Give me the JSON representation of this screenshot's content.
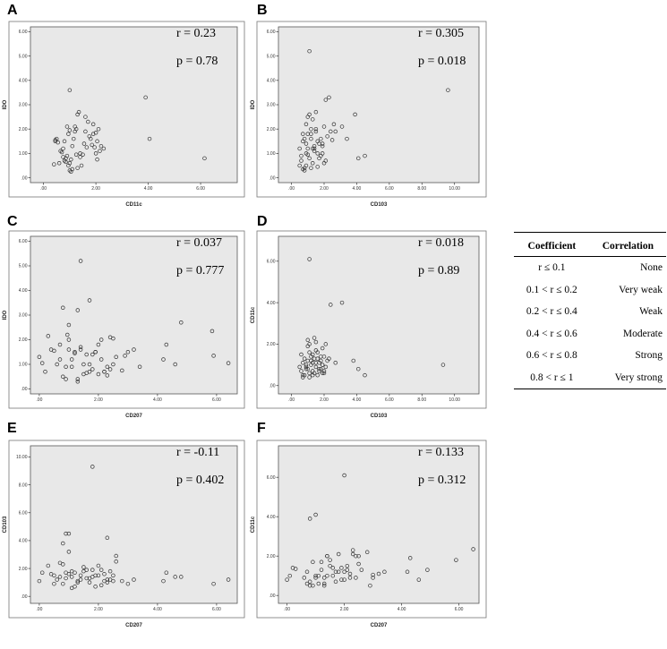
{
  "chart_data": [
    {
      "type": "scatter",
      "panel": "A",
      "xlabel": "CD11c",
      "ylabel": "IDO",
      "r_label": "r = 0.23",
      "p_label": "p = 0.78",
      "xticks": [
        {
          "v": 0,
          "t": ".00"
        },
        {
          "v": 2,
          "t": "2.00"
        },
        {
          "v": 4,
          "t": "4.00"
        },
        {
          "v": 6,
          "t": "6.00"
        }
      ],
      "yticks": [
        {
          "v": 0,
          "t": ".00"
        },
        {
          "v": 1,
          "t": "1.00"
        },
        {
          "v": 2,
          "t": "2.00"
        },
        {
          "v": 3,
          "t": "3.00"
        },
        {
          "v": 4,
          "t": "4.00"
        },
        {
          "v": 5,
          "t": "5.00"
        },
        {
          "v": 6,
          "t": "6.00"
        }
      ],
      "xlim": [
        -0.5,
        7.4
      ],
      "ylim": [
        -0.2,
        6.2
      ],
      "x": [
        0.45,
        0.5,
        0.45,
        0.55,
        0.4,
        0.6,
        0.7,
        0.65,
        0.75,
        0.8,
        0.85,
        0.9,
        0.95,
        1.0,
        1.05,
        1.1,
        1.0,
        0.95,
        1.2,
        1.25,
        1.3,
        1.35,
        1.4,
        1.5,
        1.55,
        1.6,
        1.7,
        1.75,
        1.8,
        1.9,
        2.0,
        2.1,
        2.2,
        1.15,
        1.05,
        0.85,
        0.75,
        1.3,
        1.45,
        1.65,
        1.85,
        2.0,
        2.15,
        2.3,
        1.2,
        1.0,
        0.9,
        0.8,
        1.1,
        1.6,
        1.9,
        2.05,
        2.05,
        1.95,
        3.9,
        4.05,
        6.15,
        1.0,
        1.25,
        1.4
      ],
      "y": [
        1.55,
        1.6,
        1.5,
        1.45,
        0.55,
        0.6,
        1.05,
        1.1,
        1.2,
        0.7,
        0.8,
        0.9,
        0.5,
        0.3,
        0.25,
        0.35,
        0.6,
        1.8,
        1.9,
        2.0,
        2.6,
        2.7,
        1.0,
        0.95,
        1.4,
        2.5,
        2.3,
        1.7,
        1.6,
        1.8,
        1.85,
        2.0,
        1.3,
        1.6,
        0.75,
        0.65,
        0.85,
        0.4,
        0.5,
        1.25,
        1.35,
        1.0,
        1.1,
        1.2,
        2.1,
        1.95,
        2.1,
        1.5,
        1.3,
        1.9,
        2.2,
        1.5,
        0.75,
        1.25,
        3.3,
        1.6,
        0.8,
        3.6,
        0.95,
        0.85
      ]
    },
    {
      "type": "scatter",
      "panel": "B",
      "xlabel": "CD103",
      "ylabel": "IDO",
      "r_label": "r = 0.305",
      "p_label": "p = 0.018",
      "xticks": [
        {
          "v": 0,
          "t": ".00"
        },
        {
          "v": 2,
          "t": "2.00"
        },
        {
          "v": 4,
          "t": "4.00"
        },
        {
          "v": 6,
          "t": "6.00"
        },
        {
          "v": 8,
          "t": "8.00"
        },
        {
          "v": 10,
          "t": "10.00"
        }
      ],
      "yticks": [
        {
          "v": 0,
          "t": ".00"
        },
        {
          "v": 1,
          "t": "1.00"
        },
        {
          "v": 2,
          "t": "2.00"
        },
        {
          "v": 3,
          "t": "3.00"
        },
        {
          "v": 4,
          "t": "4.00"
        },
        {
          "v": 5,
          "t": "5.00"
        },
        {
          "v": 6,
          "t": "6.00"
        }
      ],
      "xlim": [
        -0.8,
        11.5
      ],
      "ylim": [
        -0.2,
        6.2
      ],
      "x": [
        1.1,
        0.5,
        0.6,
        0.7,
        0.8,
        0.9,
        1.0,
        1.1,
        1.2,
        1.3,
        1.4,
        1.5,
        0.6,
        0.7,
        0.8,
        0.9,
        1.0,
        1.2,
        1.3,
        1.4,
        1.5,
        1.6,
        1.7,
        1.8,
        1.9,
        2.0,
        2.1,
        2.2,
        2.4,
        2.6,
        0.8,
        0.9,
        1.0,
        1.3,
        1.5,
        1.7,
        1.9,
        2.0,
        2.1,
        1.1,
        1.2,
        1.4,
        1.6,
        1.8,
        2.3,
        2.7,
        3.1,
        3.4,
        3.9,
        4.1,
        4.5,
        9.6,
        0.5,
        0.7,
        1.0,
        1.6,
        1.9,
        2.5,
        1.2,
        0.9
      ],
      "y": [
        5.2,
        0.5,
        0.7,
        1.5,
        1.6,
        1.0,
        1.2,
        0.8,
        0.4,
        0.6,
        1.3,
        1.9,
        0.9,
        1.8,
        0.3,
        2.2,
        2.5,
        1.6,
        1.2,
        1.1,
        2.0,
        1.5,
        1.4,
        0.9,
        1.3,
        0.6,
        0.7,
        1.7,
        1.9,
        2.2,
        0.4,
        1.4,
        1.8,
        2.4,
        2.7,
        0.8,
        1.0,
        2.1,
        3.2,
        2.6,
        1.8,
        1.2,
        1.0,
        1.6,
        3.3,
        1.9,
        2.1,
        1.6,
        2.6,
        0.8,
        0.9,
        3.6,
        1.2,
        0.35,
        0.95,
        0.45,
        1.4,
        1.55,
        2.0,
        0.5
      ]
    },
    {
      "type": "scatter",
      "panel": "C",
      "xlabel": "CD207",
      "ylabel": "IDO",
      "r_label": "r = 0.037",
      "p_label": "p = 0.777",
      "xticks": [
        {
          "v": 0,
          "t": ".00"
        },
        {
          "v": 2,
          "t": "2.00"
        },
        {
          "v": 4,
          "t": "4.00"
        },
        {
          "v": 6,
          "t": "6.00"
        }
      ],
      "yticks": [
        {
          "v": 0,
          "t": ".00"
        },
        {
          "v": 1,
          "t": "1.00"
        },
        {
          "v": 2,
          "t": "2.00"
        },
        {
          "v": 3,
          "t": "3.00"
        },
        {
          "v": 4,
          "t": "4.00"
        },
        {
          "v": 5,
          "t": "5.00"
        },
        {
          "v": 6,
          "t": "6.00"
        }
      ],
      "xlim": [
        -0.3,
        6.7
      ],
      "ylim": [
        -0.2,
        6.2
      ],
      "x": [
        0.0,
        0.1,
        0.2,
        0.3,
        0.4,
        0.6,
        0.7,
        0.8,
        0.9,
        1.0,
        1.1,
        1.2,
        1.3,
        1.4,
        1.5,
        1.6,
        1.7,
        1.8,
        1.9,
        2.0,
        2.1,
        2.2,
        2.3,
        2.4,
        2.5,
        2.6,
        2.8,
        3.0,
        3.2,
        3.4,
        0.5,
        0.7,
        0.9,
        1.1,
        1.3,
        1.5,
        1.7,
        1.9,
        2.1,
        2.3,
        2.5,
        1.0,
        1.2,
        1.4,
        1.6,
        1.8,
        2.0,
        2.2,
        2.4,
        0.8,
        1.4,
        0.95,
        1.7,
        1.3,
        4.2,
        4.3,
        4.6,
        4.8,
        5.85,
        5.9,
        6.4,
        2.9,
        1.0
      ],
      "y": [
        1.3,
        1.05,
        0.7,
        2.15,
        1.6,
        1.0,
        1.2,
        0.5,
        0.4,
        1.6,
        0.9,
        1.5,
        0.3,
        1.7,
        0.6,
        1.4,
        1.0,
        0.8,
        1.5,
        1.8,
        2.0,
        0.7,
        0.55,
        2.1,
        2.05,
        1.3,
        0.75,
        1.5,
        1.6,
        0.9,
        1.55,
        1.8,
        0.9,
        1.2,
        0.4,
        1.0,
        0.7,
        1.5,
        1.2,
        0.9,
        1.0,
        2.6,
        1.45,
        1.6,
        0.65,
        1.4,
        0.6,
        0.7,
        0.8,
        3.3,
        5.2,
        2.2,
        3.6,
        3.2,
        1.2,
        1.8,
        1.0,
        2.7,
        2.35,
        1.35,
        1.05,
        1.35,
        2.0
      ]
    },
    {
      "type": "scatter",
      "panel": "D",
      "xlabel": "CD103",
      "ylabel": "CD11c",
      "r_label": "r = 0.018",
      "p_label": "p = 0.89",
      "xticks": [
        {
          "v": 0,
          "t": ".00"
        },
        {
          "v": 2,
          "t": "2.00"
        },
        {
          "v": 4,
          "t": "4.00"
        },
        {
          "v": 6,
          "t": "6.00"
        },
        {
          "v": 8,
          "t": "8.00"
        },
        {
          "v": 10,
          "t": "10.00"
        }
      ],
      "yticks": [
        {
          "v": 0,
          "t": ".00"
        },
        {
          "v": 2,
          "t": "2.00"
        },
        {
          "v": 4,
          "t": "4.00"
        },
        {
          "v": 6,
          "t": "6.00"
        }
      ],
      "xlim": [
        -0.8,
        11.5
      ],
      "ylim": [
        -0.4,
        7.2
      ],
      "x": [
        0.5,
        0.6,
        0.7,
        0.8,
        0.9,
        1.0,
        1.1,
        1.2,
        1.3,
        1.4,
        1.5,
        1.6,
        1.7,
        1.8,
        1.9,
        2.0,
        2.1,
        2.2,
        0.6,
        0.7,
        0.8,
        0.9,
        1.0,
        1.1,
        1.2,
        1.3,
        1.4,
        1.5,
        1.6,
        1.7,
        1.8,
        1.9,
        2.0,
        0.7,
        0.9,
        1.1,
        1.3,
        1.5,
        1.7,
        1.9,
        2.1,
        2.3,
        1.0,
        1.2,
        1.4,
        1.6,
        1.8,
        1.0,
        1.1,
        1.5,
        2.4,
        2.7,
        3.1,
        3.8,
        4.1,
        4.5,
        9.3,
        1.1,
        1.3,
        1.9,
        2.0
      ],
      "y": [
        0.9,
        0.7,
        1.1,
        0.5,
        0.8,
        1.2,
        0.6,
        1.0,
        0.7,
        1.3,
        0.9,
        0.5,
        1.1,
        0.8,
        1.0,
        0.6,
        0.9,
        1.2,
        1.5,
        0.4,
        1.3,
        1.0,
        0.8,
        1.6,
        1.4,
        1.1,
        0.6,
        1.7,
        1.3,
        0.8,
        1.2,
        1.0,
        1.4,
        0.5,
        0.9,
        2.0,
        1.5,
        1.1,
        0.7,
        1.8,
        2.0,
        1.3,
        1.9,
        1.2,
        2.3,
        1.6,
        1.4,
        2.2,
        6.1,
        2.1,
        3.9,
        1.1,
        4.0,
        1.2,
        0.8,
        0.5,
        1.0,
        0.4,
        0.5,
        0.6,
        0.7
      ]
    },
    {
      "type": "scatter",
      "panel": "E",
      "xlabel": "CD207",
      "ylabel": "CD103",
      "r_label": "r = -0.11",
      "p_label": "p = 0.402",
      "xticks": [
        {
          "v": 0,
          "t": ".00"
        },
        {
          "v": 2,
          "t": "2.00"
        },
        {
          "v": 4,
          "t": "4.00"
        },
        {
          "v": 6,
          "t": "6.00"
        }
      ],
      "yticks": [
        {
          "v": 0,
          "t": ".00"
        },
        {
          "v": 2,
          "t": "2.00"
        },
        {
          "v": 4,
          "t": "4.00"
        },
        {
          "v": 6,
          "t": "6.00"
        },
        {
          "v": 8,
          "t": "8.00"
        },
        {
          "v": 10,
          "t": "10.00"
        }
      ],
      "xlim": [
        -0.3,
        6.7
      ],
      "ylim": [
        -0.5,
        10.8
      ],
      "x": [
        0.0,
        0.1,
        0.3,
        0.4,
        0.5,
        0.6,
        0.7,
        0.8,
        0.9,
        1.0,
        1.1,
        1.2,
        1.3,
        1.4,
        1.5,
        1.6,
        1.7,
        1.8,
        1.9,
        2.0,
        2.1,
        2.2,
        2.3,
        2.4,
        2.5,
        2.6,
        2.8,
        3.0,
        3.2,
        0.5,
        0.7,
        0.9,
        1.1,
        1.3,
        1.5,
        1.7,
        1.9,
        2.1,
        2.3,
        2.5,
        0.8,
        1.0,
        1.2,
        1.4,
        1.6,
        1.8,
        2.0,
        2.2,
        2.4,
        0.8,
        0.9,
        1.0,
        2.3,
        1.8,
        4.2,
        4.3,
        4.6,
        4.8,
        5.9,
        6.4,
        1.1,
        2.6
      ],
      "y": [
        1.1,
        1.7,
        2.2,
        1.6,
        0.9,
        1.2,
        1.4,
        0.9,
        1.3,
        1.6,
        1.8,
        0.7,
        1.0,
        1.5,
        2.1,
        1.3,
        1.0,
        1.9,
        1.5,
        2.2,
        0.8,
        1.6,
        1.2,
        1.8,
        1.1,
        2.5,
        1.1,
        0.9,
        1.2,
        1.5,
        2.4,
        1.7,
        1.4,
        1.1,
        1.8,
        1.3,
        0.7,
        1.9,
        1.0,
        1.5,
        2.3,
        4.5,
        1.7,
        1.2,
        1.9,
        1.4,
        1.5,
        1.1,
        1.2,
        3.8,
        4.5,
        3.2,
        4.2,
        9.3,
        1.1,
        1.7,
        1.4,
        1.4,
        0.9,
        1.2,
        0.6,
        2.9
      ]
    },
    {
      "type": "scatter",
      "panel": "F",
      "xlabel": "CD207",
      "ylabel": "CD11c",
      "r_label": "r = 0.133",
      "p_label": "p = 0.312",
      "xticks": [
        {
          "v": 0,
          "t": ".00"
        },
        {
          "v": 2,
          "t": "2.00"
        },
        {
          "v": 4,
          "t": "4.00"
        },
        {
          "v": 6,
          "t": "6.00"
        }
      ],
      "yticks": [
        {
          "v": 0,
          "t": ".00"
        },
        {
          "v": 2,
          "t": "2.00"
        },
        {
          "v": 4,
          "t": "4.00"
        },
        {
          "v": 6,
          "t": "6.00"
        }
      ],
      "xlim": [
        -0.3,
        6.7
      ],
      "ylim": [
        -0.4,
        7.6
      ],
      "x": [
        0.0,
        0.1,
        0.2,
        0.3,
        0.6,
        0.7,
        0.8,
        0.9,
        1.0,
        1.1,
        1.2,
        1.3,
        1.4,
        1.5,
        1.6,
        1.7,
        1.8,
        1.9,
        2.0,
        2.1,
        2.2,
        2.3,
        2.4,
        2.5,
        2.6,
        2.8,
        3.0,
        3.2,
        3.4,
        0.7,
        0.9,
        1.1,
        1.3,
        1.5,
        1.7,
        1.9,
        2.1,
        2.3,
        2.5,
        0.8,
        1.0,
        1.2,
        1.4,
        1.6,
        1.8,
        2.0,
        2.2,
        2.4,
        0.8,
        1.0,
        2.0,
        1.3,
        1.4,
        4.2,
        4.3,
        4.6,
        4.9,
        5.9,
        6.5,
        2.9,
        3.0
      ],
      "y": [
        0.8,
        1.0,
        1.4,
        1.35,
        0.9,
        1.2,
        0.7,
        0.5,
        1.0,
        0.6,
        1.3,
        0.9,
        2.0,
        1.5,
        1.0,
        0.7,
        1.2,
        1.4,
        0.8,
        1.3,
        1.1,
        2.1,
        0.9,
        1.6,
        1.3,
        2.2,
        0.9,
        1.1,
        1.2,
        0.6,
        1.7,
        1.0,
        0.5,
        1.8,
        1.2,
        0.8,
        1.5,
        2.3,
        2.0,
        0.5,
        0.9,
        1.7,
        1.0,
        1.4,
        2.1,
        1.2,
        0.9,
        2.0,
        3.9,
        4.1,
        6.1,
        0.6,
        2.0,
        1.2,
        1.9,
        0.8,
        1.3,
        1.8,
        2.35,
        0.5,
        1.05
      ]
    }
  ],
  "legend_table": {
    "headers": [
      "Coefficient",
      "Correlation"
    ],
    "rows": [
      {
        "coefficient": "r ≤ 0.1",
        "correlation": "None"
      },
      {
        "coefficient": "0.1 < r ≤ 0.2",
        "correlation": "Very weak"
      },
      {
        "coefficient": "0.2 < r ≤ 0.4",
        "correlation": "Weak"
      },
      {
        "coefficient": "0.4 < r ≤ 0.6",
        "correlation": "Moderate"
      },
      {
        "coefficient": "0.6 < r ≤ 0.8",
        "correlation": "Strong"
      },
      {
        "coefficient": "0.8 < r ≤ 1",
        "correlation": "Very strong"
      }
    ]
  }
}
